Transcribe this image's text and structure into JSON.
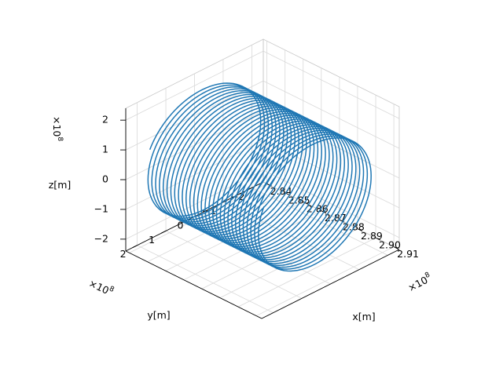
{
  "chart_data": {
    "type": "line",
    "projection": "3d",
    "grid": true,
    "x_axis": {
      "label": "x[m]",
      "multiplier_base": "×10",
      "multiplier_exp": "8",
      "ticks": [
        2.84,
        2.85,
        2.86,
        2.87,
        2.88,
        2.89,
        2.9,
        2.91
      ],
      "tick_labels": [
        "2.84",
        "2.85",
        "2.86",
        "2.87",
        "2.88",
        "2.89",
        "2.90",
        "2.91"
      ],
      "range": [
        2.838,
        2.913
      ]
    },
    "y_axis": {
      "label": "y[m]",
      "multiplier_base": "×10",
      "multiplier_exp": "8",
      "ticks": [
        2,
        1,
        0,
        -1,
        -2
      ],
      "tick_labels": [
        "2",
        "1",
        "0",
        "−1",
        "−2"
      ],
      "range": [
        -2.4,
        2.4
      ]
    },
    "z_axis": {
      "label": "z[m]",
      "multiplier_base": "×10",
      "multiplier_exp": "8",
      "ticks": [
        2,
        1,
        0,
        -1,
        -2
      ],
      "tick_labels": [
        "2",
        "1",
        "0",
        "−1",
        "−2"
      ],
      "range": [
        -2.4,
        2.4
      ]
    },
    "series": [
      {
        "kind": "helix",
        "color": "#1f77b4",
        "turns": 30,
        "radius": 2.0,
        "x_start": 2.842,
        "x_end": 2.905,
        "start_angle_deg": 25
      }
    ]
  }
}
